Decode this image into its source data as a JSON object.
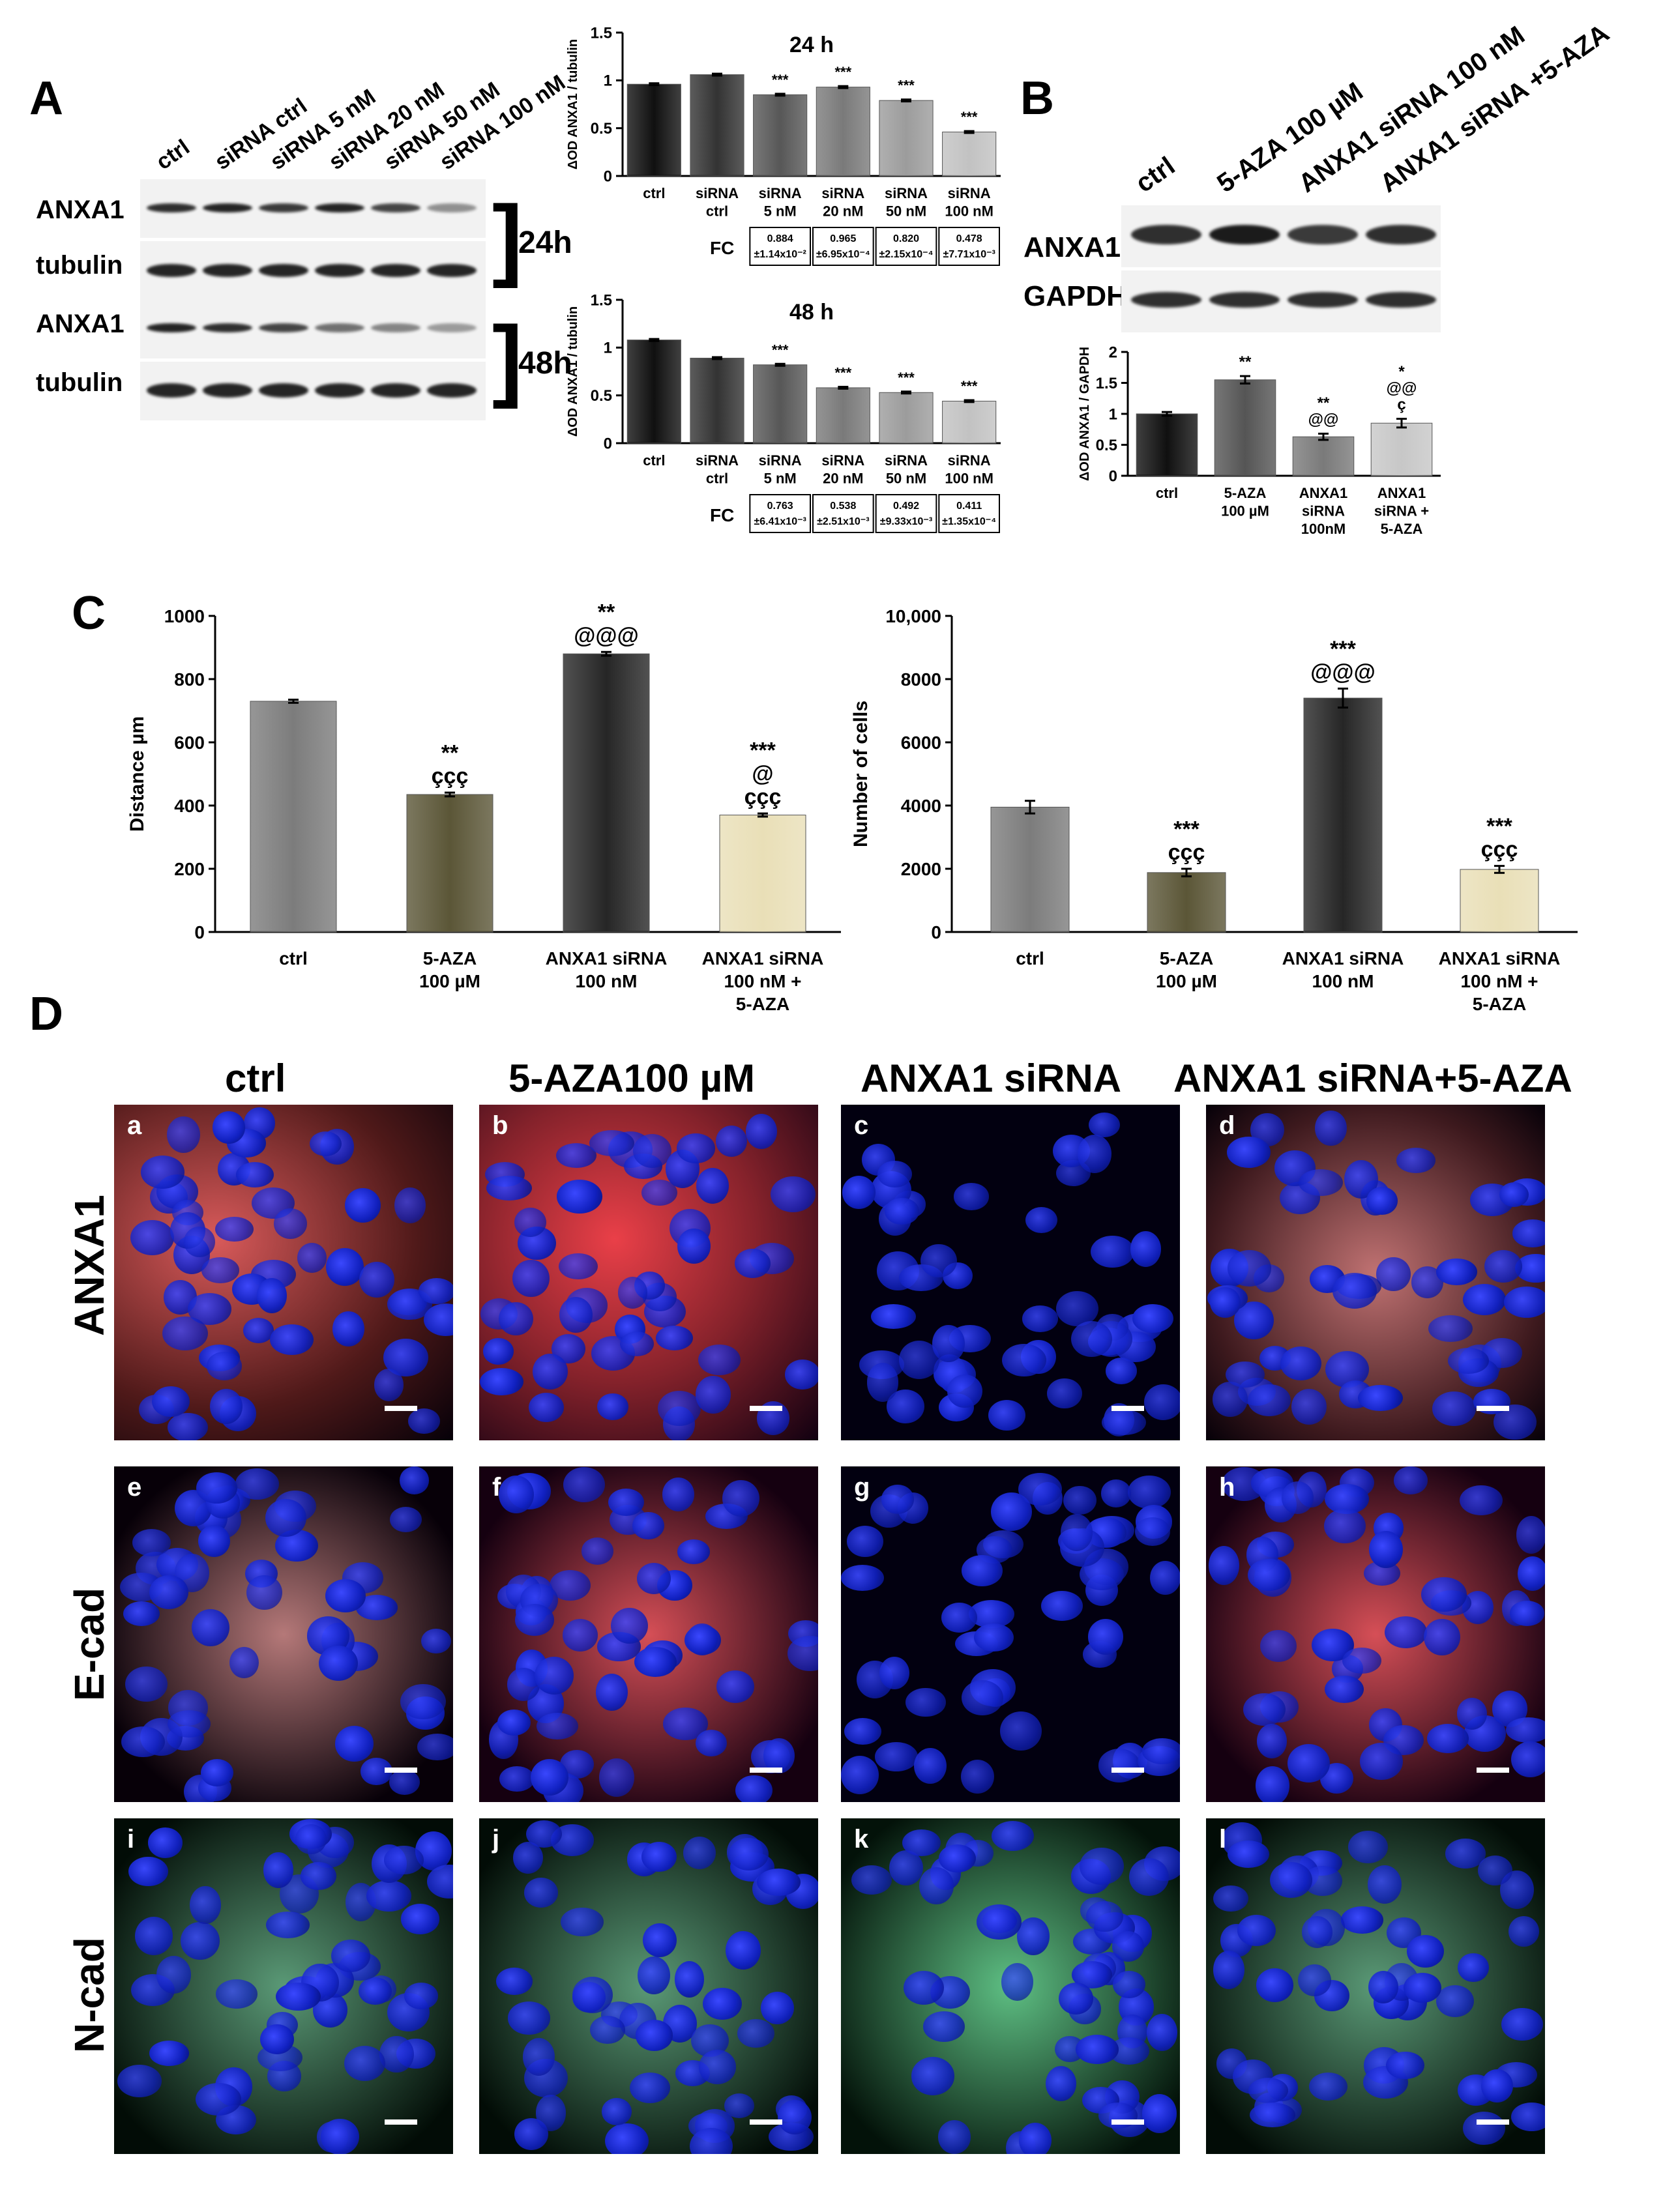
{
  "panel_labels": {
    "A": "A",
    "B": "B",
    "C": "C",
    "D": "D"
  },
  "panelA": {
    "lanes": [
      "ctrl",
      "siRNA ctrl",
      "siRNA 5 nM",
      "siRNA 20 nM",
      "siRNA 50 nM",
      "siRNA 100 nM"
    ],
    "rows": [
      "ANXA1",
      "tubulin",
      "ANXA1",
      "tubulin"
    ],
    "times": [
      "24h",
      "48h"
    ],
    "band_intensity_24h_anxa1": [
      0.9,
      0.95,
      0.85,
      0.95,
      0.8,
      0.45
    ],
    "band_intensity_48h_anxa1": [
      0.95,
      0.9,
      0.8,
      0.6,
      0.5,
      0.4
    ]
  },
  "panelB": {
    "lanes": [
      "ctrl",
      "5-AZA 100 µM",
      "ANXA1 siRNA 100 nM",
      "ANXA1 siRNA +5-AZA"
    ],
    "rows": [
      "ANXA1",
      "GAPDH"
    ]
  },
  "panelD": {
    "columns": [
      "ctrl",
      "5-AZA100 µM",
      "ANXA1 siRNA",
      "ANXA1 siRNA+5-AZA"
    ],
    "rows": [
      "ANXA1",
      "E-cad",
      "N-cad"
    ],
    "letters": [
      "a",
      "b",
      "c",
      "d",
      "e",
      "f",
      "g",
      "h",
      "i",
      "j",
      "k",
      "l"
    ]
  },
  "chart_data": [
    {
      "id": "A-24h",
      "type": "bar",
      "title": "24 h",
      "ylabel": "ΔOD ANXA1 / tubulin",
      "ylim": [
        0,
        1.5
      ],
      "yticks": [
        "0",
        "0.5",
        "1",
        "1.5"
      ],
      "categories": [
        [
          "ctrl"
        ],
        [
          "siRNA",
          "ctrl"
        ],
        [
          "siRNA",
          "5 nM"
        ],
        [
          "siRNA",
          "20 nM"
        ],
        [
          "siRNA",
          "50 nM"
        ],
        [
          "siRNA",
          "100 nM"
        ]
      ],
      "values": [
        0.96,
        1.06,
        0.85,
        0.93,
        0.79,
        0.46
      ],
      "errors": [
        0.01,
        0.01,
        0.01,
        0.01,
        0.01,
        0.01
      ],
      "colors": [
        "#101010",
        "#333333",
        "#575757",
        "#7a7a7a",
        "#9c9c9c",
        "#c2c2c2"
      ],
      "annotations": [
        "",
        "",
        "***",
        "***",
        "***",
        "***"
      ],
      "fc_label": "FC",
      "fc": [
        [
          "0.884",
          "±1.14x10⁻²"
        ],
        [
          "0.965",
          "±6.95x10⁻⁴"
        ],
        [
          "0.820",
          "±2.15x10⁻⁴"
        ],
        [
          "0.478",
          "±7.71x10⁻³"
        ]
      ]
    },
    {
      "id": "A-48h",
      "type": "bar",
      "title": "48 h",
      "ylabel": "ΔOD ANXA1 / tubulin",
      "ylim": [
        0,
        1.5
      ],
      "yticks": [
        "0",
        "0.5",
        "1",
        "1.5"
      ],
      "categories": [
        [
          "ctrl"
        ],
        [
          "siRNA",
          "ctrl"
        ],
        [
          "siRNA",
          "5 nM"
        ],
        [
          "siRNA",
          "20 nM"
        ],
        [
          "siRNA",
          "50 nM"
        ],
        [
          "siRNA",
          "100 nM"
        ]
      ],
      "values": [
        1.08,
        0.89,
        0.82,
        0.58,
        0.53,
        0.44
      ],
      "errors": [
        0.01,
        0.01,
        0.01,
        0.01,
        0.01,
        0.01
      ],
      "colors": [
        "#101010",
        "#333333",
        "#575757",
        "#7a7a7a",
        "#9c9c9c",
        "#c2c2c2"
      ],
      "annotations": [
        "",
        "",
        "***",
        "***",
        "***",
        "***"
      ],
      "fc_label": "FC",
      "fc": [
        [
          "0.763",
          "±6.41x10⁻³"
        ],
        [
          "0.538",
          "±2.51x10⁻³"
        ],
        [
          "0.492",
          "±9.33x10⁻³"
        ],
        [
          "0.411",
          "±1.35x10⁻⁴"
        ]
      ]
    },
    {
      "id": "B",
      "type": "bar",
      "title": "",
      "ylabel": "ΔOD ANXA1 / GAPDH",
      "ylim": [
        0,
        2
      ],
      "yticks": [
        "0",
        "0.5",
        "1",
        "1.5",
        "2"
      ],
      "categories": [
        [
          "ctrl"
        ],
        [
          "5-AZA",
          "100 µM"
        ],
        [
          "ANXA1",
          "siRNA",
          "100nM"
        ],
        [
          "ANXA1",
          "siRNA +",
          "5-AZA"
        ]
      ],
      "values": [
        1.0,
        1.55,
        0.63,
        0.85
      ],
      "errors": [
        0.03,
        0.06,
        0.05,
        0.07
      ],
      "colors": [
        "#101010",
        "#555555",
        "#7a7a7a",
        "#c7c7c7"
      ],
      "annotations": [
        [],
        [
          "**"
        ],
        [
          "**",
          "@@"
        ],
        [
          "*",
          "@@",
          "ç"
        ]
      ]
    },
    {
      "id": "C-distance",
      "type": "bar",
      "title": "",
      "ylabel": "Distance µm",
      "ylim": [
        0,
        1000
      ],
      "yticks": [
        "0",
        "200",
        "400",
        "600",
        "800",
        "1000"
      ],
      "categories": [
        [
          "ctrl"
        ],
        [
          "5-AZA",
          "100 µM"
        ],
        [
          "ANXA1 siRNA",
          "100 nM"
        ],
        [
          "ANXA1 siRNA",
          "100 nM +",
          "5-AZA"
        ]
      ],
      "values": [
        730,
        435,
        880,
        370
      ],
      "errors": [
        5,
        6,
        6,
        5
      ],
      "colors": [
        "#7c7c7c",
        "#5b5637",
        "#262626",
        "#e9dfb7"
      ],
      "annotations": [
        [],
        [
          "**",
          "ççç"
        ],
        [
          "**",
          "@@@"
        ],
        [
          "***",
          "@",
          "ççç"
        ]
      ]
    },
    {
      "id": "C-cells",
      "type": "bar",
      "title": "",
      "ylabel": "Number of cells",
      "ylim": [
        0,
        10000
      ],
      "yticks": [
        "0",
        "2000",
        "4000",
        "6000",
        "8000",
        "10,000"
      ],
      "categories": [
        [
          "ctrl"
        ],
        [
          "5-AZA",
          "100 µM"
        ],
        [
          "ANXA1 siRNA",
          "100 nM"
        ],
        [
          "ANXA1 siRNA",
          "100 nM +",
          "5-AZA"
        ]
      ],
      "values": [
        3950,
        1880,
        7400,
        1980
      ],
      "errors": [
        200,
        120,
        300,
        110
      ],
      "colors": [
        "#7c7c7c",
        "#5b5637",
        "#262626",
        "#e9dfb7"
      ],
      "annotations": [
        [],
        [
          "***",
          "ççç"
        ],
        [
          "***",
          "@@@"
        ],
        [
          "***",
          "ççç"
        ]
      ]
    }
  ]
}
